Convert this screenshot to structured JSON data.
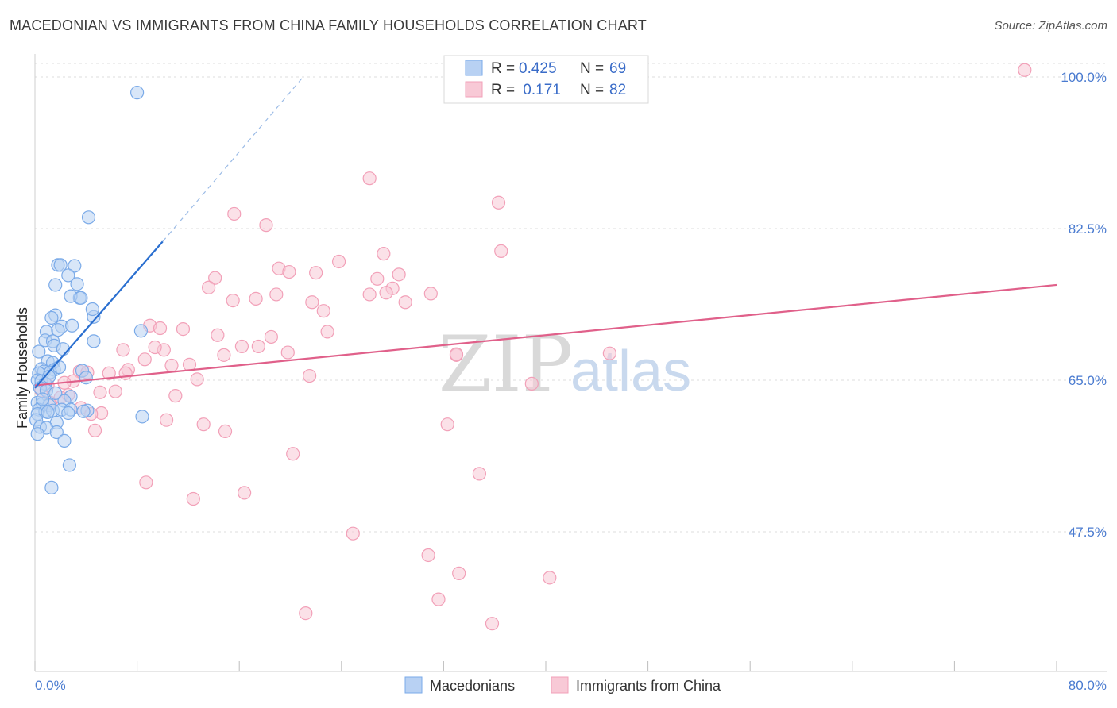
{
  "chart_data": {
    "type": "scatter",
    "title": "MACEDONIAN VS IMMIGRANTS FROM CHINA FAMILY HOUSEHOLDS CORRELATION CHART",
    "source": "Source: ZipAtlas.com",
    "xlabel": "",
    "ylabel": "Family Households",
    "xlim": [
      0,
      80
    ],
    "ylim": [
      30,
      101.5
    ],
    "x_tick_labels": [
      "0.0%",
      "80.0%"
    ],
    "y_ticks": [
      47.5,
      65.0,
      82.5,
      100.0
    ],
    "y_tick_labels": [
      "47.5%",
      "65.0%",
      "82.5%",
      "100.0%"
    ],
    "watermark": {
      "zip": "ZIP",
      "atlas": "atlas"
    },
    "legend": [
      {
        "r_label": "R = ",
        "r_value": "0.425",
        "n_label": "N = ",
        "n_value": "69"
      },
      {
        "r_label": "R = ",
        "r_value": " 0.171",
        "n_label": "N = ",
        "n_value": "82"
      }
    ],
    "series": [
      {
        "name": "Macedonians",
        "color": "#7aaae8",
        "fill": "#b8d1f3",
        "trend": {
          "x0": 0.0,
          "y0": 64.1,
          "x1": 10.0,
          "y1": 81.0,
          "color": "#2a6fd0",
          "dash_x1": 21.0,
          "dash_y1": 100.0
        },
        "points": [
          [
            8.0,
            98.2
          ],
          [
            4.2,
            83.8
          ],
          [
            1.8,
            78.3
          ],
          [
            2.0,
            78.3
          ],
          [
            3.1,
            78.2
          ],
          [
            2.6,
            77.1
          ],
          [
            1.6,
            76.0
          ],
          [
            3.3,
            76.1
          ],
          [
            3.5,
            74.5
          ],
          [
            2.8,
            74.7
          ],
          [
            3.6,
            74.5
          ],
          [
            1.6,
            72.5
          ],
          [
            1.3,
            72.2
          ],
          [
            4.6,
            72.3
          ],
          [
            4.5,
            73.2
          ],
          [
            2.1,
            71.2
          ],
          [
            2.9,
            71.3
          ],
          [
            0.9,
            70.6
          ],
          [
            1.8,
            70.8
          ],
          [
            0.8,
            69.6
          ],
          [
            1.4,
            69.5
          ],
          [
            4.6,
            69.5
          ],
          [
            8.3,
            70.7
          ],
          [
            1.5,
            69.0
          ],
          [
            0.3,
            68.3
          ],
          [
            1.0,
            67.2
          ],
          [
            1.4,
            67.0
          ],
          [
            0.5,
            66.3
          ],
          [
            1.5,
            66.2
          ],
          [
            0.7,
            66.0
          ],
          [
            0.3,
            65.8
          ],
          [
            1.2,
            65.9
          ],
          [
            3.7,
            66.1
          ],
          [
            4.0,
            65.3
          ],
          [
            0.2,
            65.0
          ],
          [
            0.5,
            64.9
          ],
          [
            0.8,
            64.6
          ],
          [
            1.1,
            65.4
          ],
          [
            0.4,
            64.1
          ],
          [
            0.9,
            63.8
          ],
          [
            1.6,
            63.5
          ],
          [
            2.8,
            63.1
          ],
          [
            0.2,
            62.4
          ],
          [
            0.6,
            62.3
          ],
          [
            1.1,
            62.1
          ],
          [
            2.3,
            62.6
          ],
          [
            0.3,
            61.6
          ],
          [
            0.8,
            61.4
          ],
          [
            1.4,
            61.5
          ],
          [
            2.1,
            61.6
          ],
          [
            2.8,
            61.6
          ],
          [
            4.1,
            61.5
          ],
          [
            3.8,
            61.4
          ],
          [
            0.2,
            61.1
          ],
          [
            1.0,
            61.3
          ],
          [
            2.6,
            61.2
          ],
          [
            0.1,
            60.4
          ],
          [
            1.7,
            60.1
          ],
          [
            0.4,
            59.6
          ],
          [
            0.9,
            59.5
          ],
          [
            1.7,
            59.0
          ],
          [
            8.4,
            60.8
          ],
          [
            0.2,
            58.8
          ],
          [
            2.3,
            58.0
          ],
          [
            2.7,
            55.2
          ],
          [
            1.3,
            52.6
          ],
          [
            0.6,
            62.8
          ],
          [
            1.9,
            66.5
          ],
          [
            2.2,
            68.6
          ]
        ]
      },
      {
        "name": "Immigrants from China",
        "color": "#f2a0b8",
        "fill": "#f8c9d6",
        "trend": {
          "x0": 0.0,
          "y0": 64.4,
          "x1": 80.0,
          "y1": 76.0,
          "color": "#e0608a"
        },
        "points": [
          [
            77.5,
            100.8
          ],
          [
            26.2,
            88.3
          ],
          [
            36.3,
            85.5
          ],
          [
            15.6,
            84.2
          ],
          [
            18.1,
            82.9
          ],
          [
            36.5,
            79.9
          ],
          [
            27.3,
            79.6
          ],
          [
            23.8,
            78.7
          ],
          [
            19.1,
            77.9
          ],
          [
            19.9,
            77.5
          ],
          [
            22.0,
            77.4
          ],
          [
            28.5,
            77.2
          ],
          [
            14.1,
            76.8
          ],
          [
            26.8,
            76.7
          ],
          [
            13.6,
            75.7
          ],
          [
            28.0,
            75.6
          ],
          [
            27.5,
            75.1
          ],
          [
            31.0,
            75.0
          ],
          [
            18.9,
            74.9
          ],
          [
            26.2,
            74.9
          ],
          [
            17.3,
            74.4
          ],
          [
            15.5,
            74.2
          ],
          [
            21.7,
            74.0
          ],
          [
            29.0,
            74.0
          ],
          [
            22.6,
            73.0
          ],
          [
            9.0,
            71.3
          ],
          [
            9.8,
            71.0
          ],
          [
            11.6,
            70.9
          ],
          [
            22.9,
            70.6
          ],
          [
            14.3,
            70.2
          ],
          [
            18.5,
            70.0
          ],
          [
            16.2,
            68.9
          ],
          [
            6.9,
            68.5
          ],
          [
            10.1,
            68.5
          ],
          [
            19.8,
            68.2
          ],
          [
            45.0,
            68.1
          ],
          [
            14.8,
            67.9
          ],
          [
            33.0,
            67.9
          ],
          [
            8.6,
            67.4
          ],
          [
            12.1,
            66.8
          ],
          [
            10.7,
            66.7
          ],
          [
            7.3,
            66.2
          ],
          [
            5.8,
            65.8
          ],
          [
            7.1,
            65.8
          ],
          [
            3.5,
            66.0
          ],
          [
            4.1,
            65.9
          ],
          [
            21.5,
            65.5
          ],
          [
            12.7,
            65.1
          ],
          [
            3.0,
            64.9
          ],
          [
            38.9,
            64.6
          ],
          [
            0.5,
            63.8
          ],
          [
            5.1,
            63.6
          ],
          [
            6.3,
            63.7
          ],
          [
            2.6,
            63.3
          ],
          [
            11.0,
            63.2
          ],
          [
            1.2,
            62.4
          ],
          [
            2.0,
            63.0
          ],
          [
            3.6,
            61.8
          ],
          [
            5.2,
            61.2
          ],
          [
            4.4,
            61.1
          ],
          [
            10.3,
            60.4
          ],
          [
            13.2,
            59.9
          ],
          [
            32.3,
            59.9
          ],
          [
            14.9,
            59.1
          ],
          [
            4.7,
            59.2
          ],
          [
            20.2,
            56.5
          ],
          [
            34.8,
            54.2
          ],
          [
            8.7,
            53.2
          ],
          [
            16.4,
            52.0
          ],
          [
            12.4,
            51.3
          ],
          [
            24.9,
            47.3
          ],
          [
            30.8,
            44.8
          ],
          [
            33.2,
            42.7
          ],
          [
            40.3,
            42.2
          ],
          [
            31.6,
            39.7
          ],
          [
            21.2,
            38.1
          ],
          [
            35.8,
            36.9
          ],
          [
            1.0,
            64.4
          ],
          [
            2.3,
            64.7
          ],
          [
            9.4,
            68.8
          ],
          [
            17.5,
            68.9
          ],
          [
            33.0,
            68.0
          ]
        ]
      }
    ],
    "bottom_legend": [
      "Macedonians",
      "Immigrants from China"
    ]
  }
}
